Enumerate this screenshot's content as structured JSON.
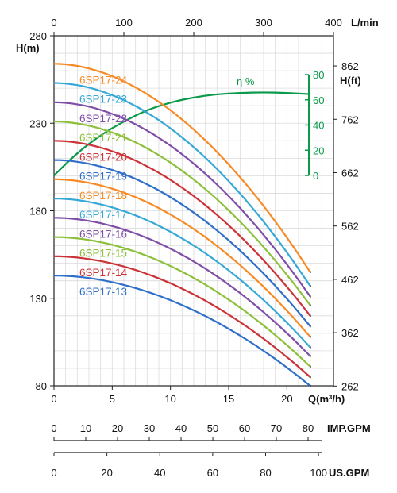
{
  "chart_data": {
    "type": "line",
    "x_label": "Q(m³/h)",
    "top_axis_unit": "L/min",
    "left_axis_unit": "H(m)",
    "right_axis_unit": "H(ft)",
    "efficiency_label": "η %",
    "imp_gpm_label": "IMP.GPM",
    "us_gpm_label": "US.GPM",
    "xlim": [
      0,
      24
    ],
    "ylim": [
      80,
      280
    ],
    "x_ticks": [
      "0",
      "5",
      "10",
      "15",
      "20"
    ],
    "y_ticks": [
      "80",
      "130",
      "180",
      "230",
      "280"
    ],
    "top_ticks": [
      "0",
      "100",
      "200",
      "300",
      "400"
    ],
    "right_ticks": [
      "262",
      "362",
      "462",
      "562",
      "662",
      "762",
      "862"
    ],
    "efficiency_ticks": [
      "0",
      "20",
      "40",
      "60",
      "80"
    ],
    "imp_gpm_ticks": [
      "0",
      "10",
      "20",
      "30",
      "40",
      "50",
      "60",
      "70",
      "80"
    ],
    "us_gpm_ticks": [
      "0",
      "20",
      "40",
      "60",
      "80",
      "100"
    ],
    "grid": true,
    "efficiency": {
      "name": "η %",
      "color": "#0a9a4a",
      "x": [
        0,
        2,
        4,
        6,
        8,
        10,
        12,
        14,
        16,
        18,
        20,
        22
      ],
      "y": [
        0,
        18,
        32,
        43,
        52,
        58,
        62,
        64.5,
        65.5,
        66,
        65.5,
        64.5
      ]
    },
    "series": [
      {
        "name": "6SP17-24",
        "color": "#f78a24",
        "H0": 264,
        "Hend": 145
      },
      {
        "name": "6SP17-23",
        "color": "#36a8d8",
        "H0": 253,
        "Hend": 137
      },
      {
        "name": "6SP17-22",
        "color": "#7e4ea8",
        "H0": 242,
        "Hend": 131
      },
      {
        "name": "6SP17-21",
        "color": "#8cbf3a",
        "H0": 231,
        "Hend": 126
      },
      {
        "name": "6SP17-20",
        "color": "#cc3338",
        "H0": 220,
        "Hend": 120
      },
      {
        "name": "6SP17-19",
        "color": "#2f6fc9",
        "H0": 209,
        "Hend": 114
      },
      {
        "name": "6SP17-18",
        "color": "#f78a24",
        "H0": 198,
        "Hend": 108
      },
      {
        "name": "6SP17-17",
        "color": "#36a8d8",
        "H0": 187,
        "Hend": 102
      },
      {
        "name": "6SP17-16",
        "color": "#7e4ea8",
        "H0": 176,
        "Hend": 97
      },
      {
        "name": "6SP17-15",
        "color": "#8cbf3a",
        "H0": 165,
        "Hend": 91
      },
      {
        "name": "6SP17-14",
        "color": "#cc3338",
        "H0": 154,
        "Hend": 85
      },
      {
        "name": "6SP17-13",
        "color": "#2f6fc9",
        "H0": 143,
        "Hend": 80
      }
    ],
    "x_end": 22
  }
}
